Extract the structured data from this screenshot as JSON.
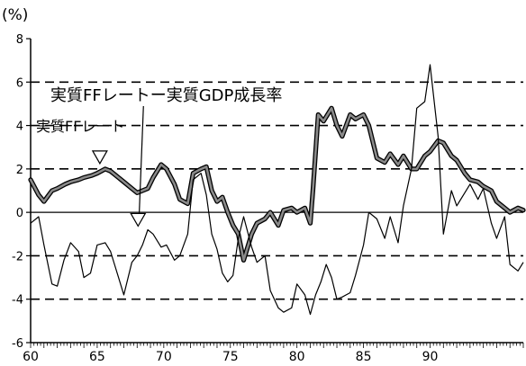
{
  "chart_data": {
    "type": "line",
    "unit_label": "(%)",
    "xlim": [
      60,
      97
    ],
    "ylim": [
      -6,
      8
    ],
    "x_ticks": [
      60,
      65,
      70,
      75,
      80,
      85,
      90
    ],
    "x_tick_labels": [
      "60",
      "65",
      "70",
      "75",
      "80",
      "85",
      "90"
    ],
    "y_ticks": [
      -6,
      -4,
      -2,
      0,
      2,
      4,
      6,
      8
    ],
    "y_tick_labels": [
      "-6",
      "-4",
      "-2",
      "0",
      "2",
      "4",
      "6",
      "8"
    ],
    "dashed_gridlines_at": [
      -4,
      -2,
      2,
      4,
      6
    ],
    "series": [
      {
        "name": "実質FFレート",
        "style": "thick-gray",
        "x": [
          60.0,
          60.6,
          61.0,
          61.6,
          62.0,
          62.6,
          63.0,
          63.6,
          64.0,
          64.6,
          65.0,
          65.6,
          66.0,
          66.6,
          67.0,
          67.6,
          68.0,
          68.4,
          68.8,
          69.2,
          69.8,
          70.2,
          70.8,
          71.2,
          71.8,
          72.2,
          72.8,
          73.2,
          73.6,
          74.0,
          74.4,
          74.8,
          75.2,
          75.6,
          76.0,
          76.6,
          77.0,
          77.6,
          78.0,
          78.6,
          79.0,
          79.6,
          80.0,
          80.6,
          81.0,
          81.2,
          81.6,
          82.0,
          82.6,
          83.0,
          83.4,
          84.0,
          84.4,
          85.0,
          85.4,
          86.0,
          86.6,
          87.0,
          87.6,
          88.0,
          88.6,
          89.0,
          89.6,
          90.0,
          90.6,
          91.0,
          91.6,
          92.0,
          92.6,
          93.0,
          93.6,
          94.0,
          94.6,
          95.0,
          95.6,
          96.0,
          96.6,
          97.0
        ],
        "y": [
          1.5,
          0.8,
          0.5,
          1.0,
          1.1,
          1.3,
          1.4,
          1.5,
          1.6,
          1.7,
          1.8,
          2.0,
          1.9,
          1.6,
          1.4,
          1.1,
          0.9,
          1.0,
          1.1,
          1.6,
          2.2,
          2.0,
          1.3,
          0.6,
          0.4,
          1.8,
          2.0,
          2.1,
          1.0,
          0.5,
          0.7,
          0.0,
          -0.6,
          -1.0,
          -2.2,
          -1.0,
          -0.5,
          -0.3,
          0.0,
          -0.6,
          0.1,
          0.2,
          0.0,
          0.2,
          -0.5,
          1.0,
          4.5,
          4.2,
          4.8,
          4.0,
          3.5,
          4.5,
          4.3,
          4.5,
          4.0,
          2.5,
          2.3,
          2.7,
          2.2,
          2.6,
          2.0,
          2.0,
          2.6,
          2.8,
          3.3,
          3.2,
          2.6,
          2.4,
          1.8,
          1.5,
          1.4,
          1.2,
          1.0,
          0.5,
          0.2,
          0.0,
          0.2,
          0.1
        ]
      },
      {
        "name": "実質FFレートー実質GDP成長率",
        "style": "thin-black",
        "x": [
          60.0,
          60.6,
          61.0,
          61.6,
          62.0,
          62.5,
          63.0,
          63.6,
          64.0,
          64.5,
          65.0,
          65.6,
          66.0,
          66.6,
          67.0,
          67.6,
          68.0,
          68.4,
          68.8,
          69.2,
          69.8,
          70.2,
          70.8,
          71.2,
          71.8,
          72.2,
          72.8,
          73.2,
          73.6,
          74.0,
          74.4,
          74.8,
          75.2,
          75.6,
          76.0,
          76.6,
          77.0,
          77.6,
          78.0,
          78.6,
          79.0,
          79.6,
          80.0,
          80.6,
          81.0,
          81.4,
          81.8,
          82.2,
          82.6,
          83.0,
          83.4,
          84.0,
          84.4,
          85.0,
          85.4,
          86.0,
          86.6,
          87.0,
          87.6,
          88.0,
          88.6,
          89.0,
          89.6,
          90.0,
          90.6,
          91.0,
          91.6,
          92.0,
          92.6,
          93.0,
          93.6,
          94.0,
          94.6,
          95.0,
          95.6,
          96.0,
          96.6,
          97.0
        ],
        "y": [
          -0.5,
          -0.2,
          -1.5,
          -3.3,
          -3.4,
          -2.2,
          -1.4,
          -1.8,
          -3.0,
          -2.8,
          -1.5,
          -1.4,
          -1.8,
          -3.0,
          -3.8,
          -2.3,
          -2.0,
          -1.5,
          -0.8,
          -1.0,
          -1.6,
          -1.5,
          -2.2,
          -2.0,
          -1.0,
          1.5,
          1.8,
          0.8,
          -1.0,
          -1.7,
          -2.8,
          -3.2,
          -2.9,
          -1.2,
          -0.2,
          -1.6,
          -2.3,
          -2.0,
          -3.6,
          -4.4,
          -4.6,
          -4.4,
          -3.3,
          -3.8,
          -4.7,
          -3.8,
          -3.2,
          -2.4,
          -3.0,
          -4.0,
          -3.9,
          -3.7,
          -2.9,
          -1.5,
          0.0,
          -0.3,
          -1.2,
          -0.2,
          -1.4,
          0.3,
          2.0,
          4.8,
          5.1,
          6.8,
          3.5,
          -1.0,
          1.0,
          0.3,
          0.9,
          1.3,
          0.6,
          1.1,
          -0.5,
          -1.2,
          -0.2,
          -2.4,
          -2.7,
          -2.3
        ]
      }
    ],
    "annotations": [
      {
        "text": "実質FFレートー実質GDP成長率",
        "points_to_x": 68.0,
        "points_to_y": -0.8
      },
      {
        "text": "実質FFレート",
        "points_to_x": 65.2,
        "points_to_y": 2.0
      }
    ]
  }
}
